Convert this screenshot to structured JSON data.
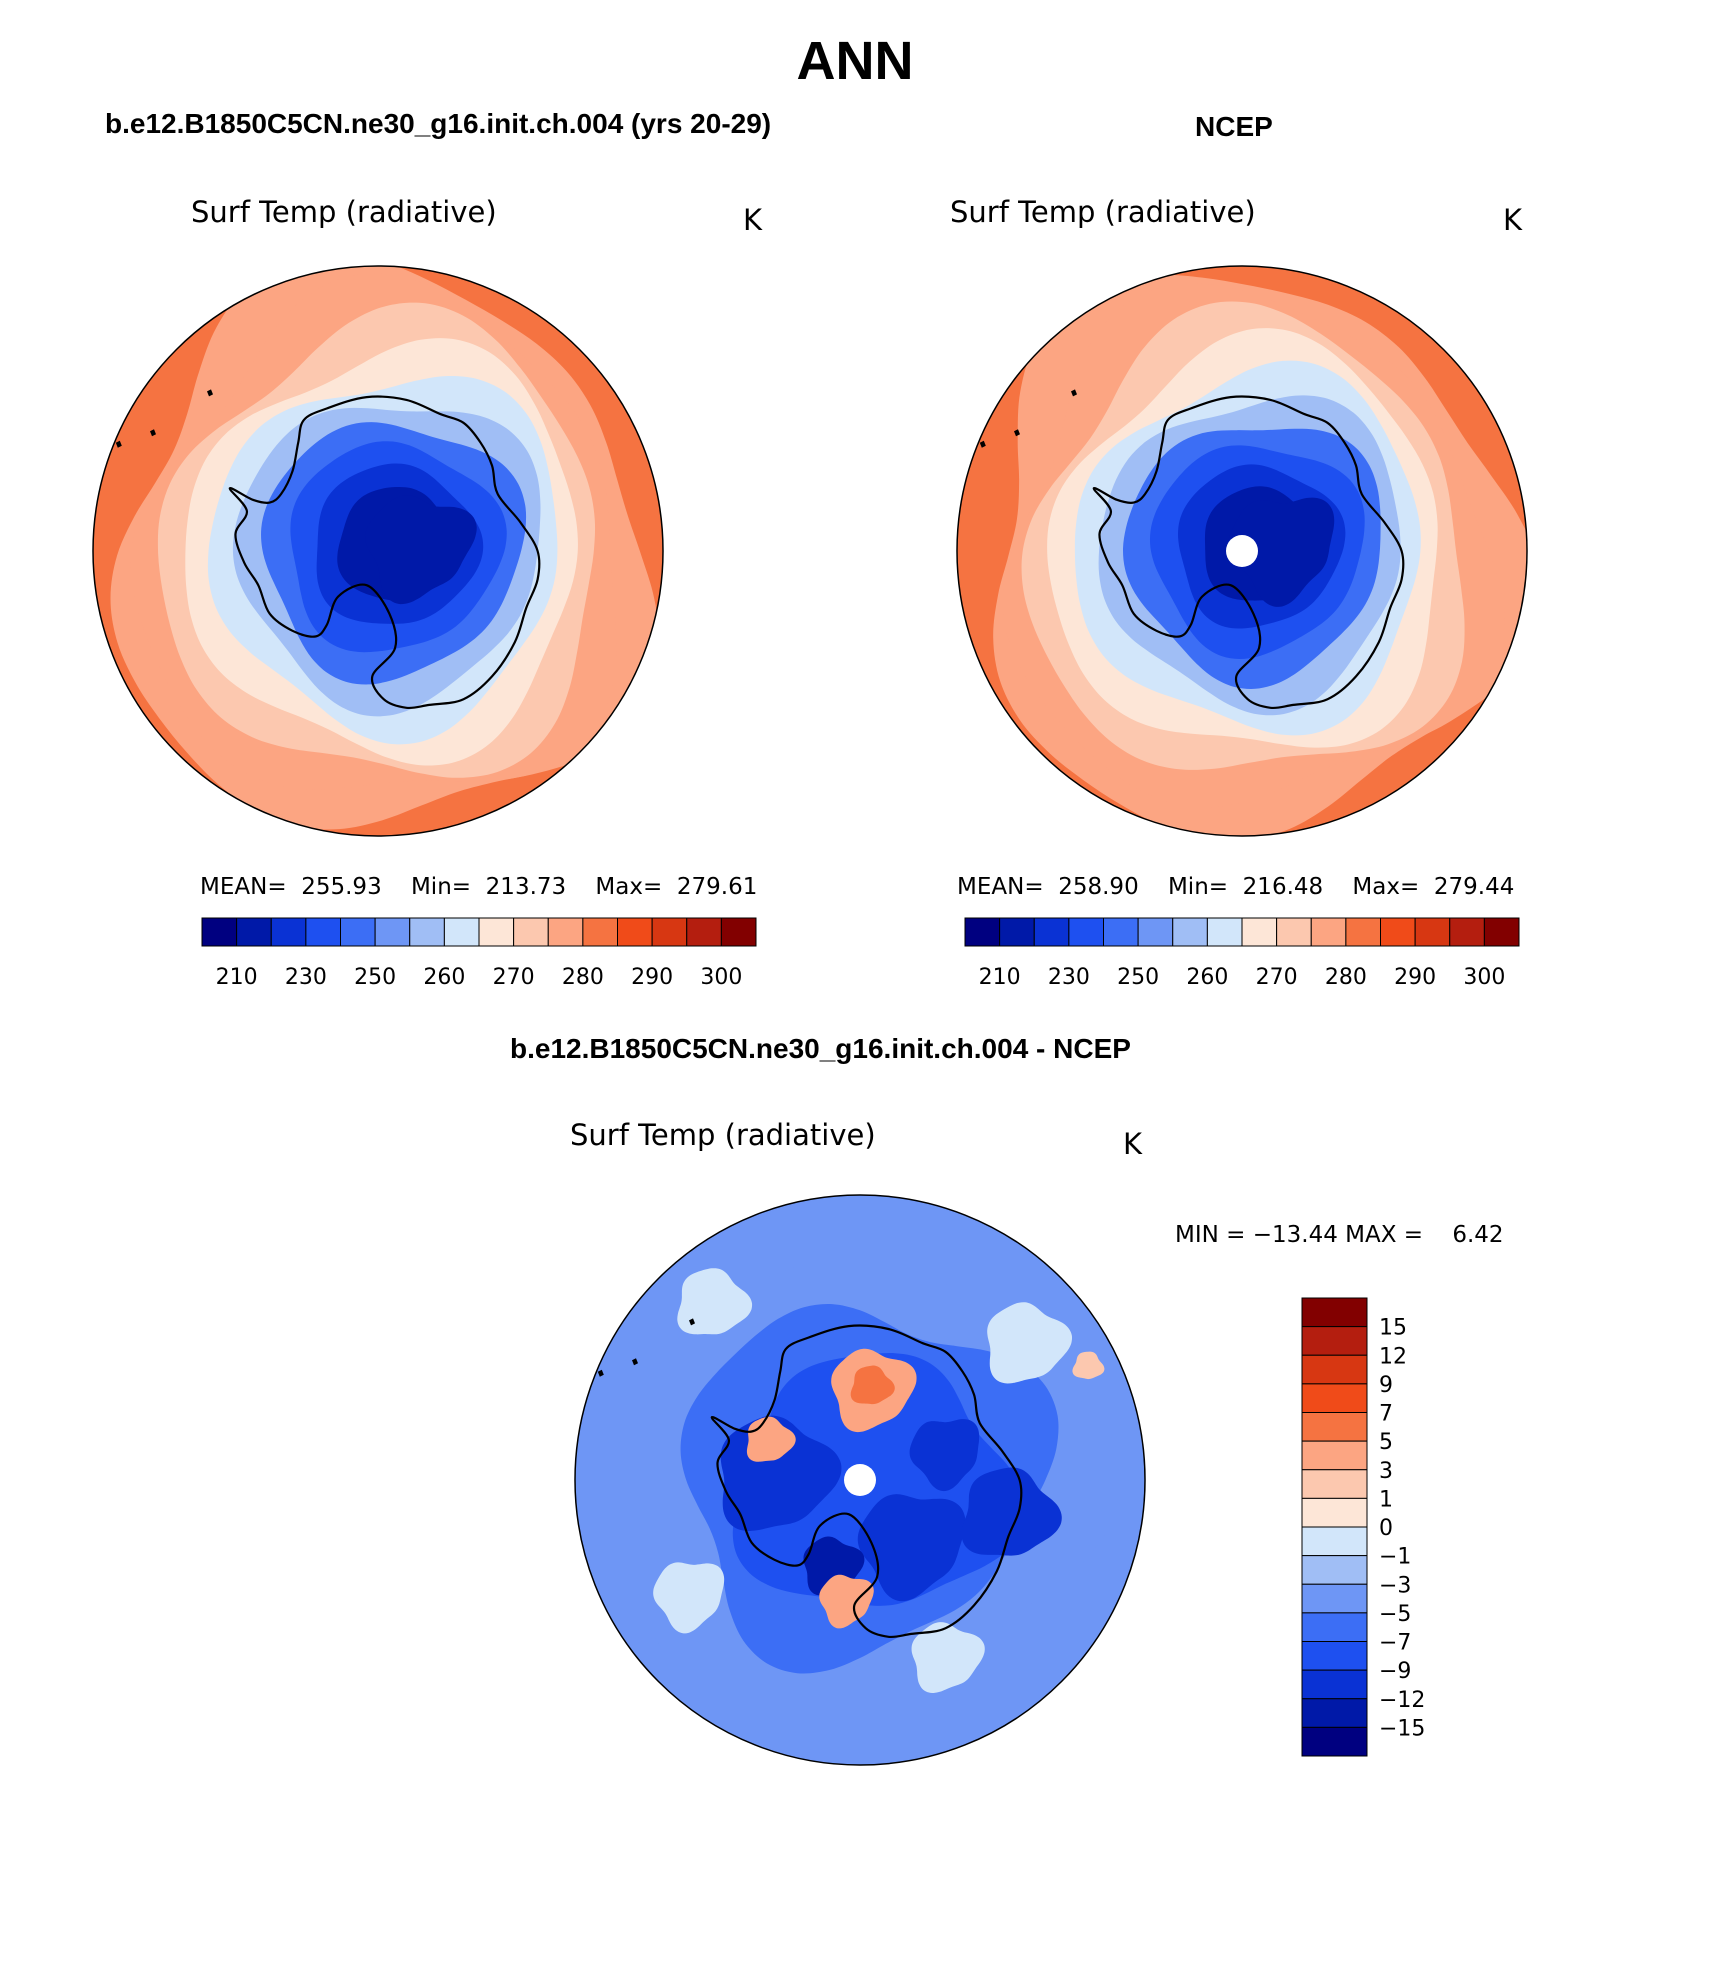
{
  "main_title": "ANN",
  "chart_data": [
    {
      "type": "heatmap",
      "projection": "south-polar-stereographic",
      "title": "b.e12.B1850C5CN.ne30_g16.init.ch.004 (yrs 20-29)",
      "variable": "Surf Temp (radiative)",
      "units": "K",
      "stats": {
        "mean_label": "MEAN=",
        "mean": "255.93",
        "min_label": "Min=",
        "min": "213.73",
        "max_label": "Max=",
        "max": "279.61"
      },
      "contour_levels": [
        210,
        220,
        230,
        240,
        250,
        255,
        260,
        265,
        270,
        275,
        280,
        285,
        290,
        295,
        300
      ],
      "tick_labels": [
        "210",
        "230",
        "250",
        "260",
        "270",
        "280",
        "290",
        "300"
      ],
      "colors": [
        "#000080",
        "#0019a8",
        "#0a32d4",
        "#1e50f0",
        "#3c6ef5",
        "#6e96f5",
        "#a0bef5",
        "#d2e6fa",
        "#fde6d7",
        "#fcc8af",
        "#fca582",
        "#f57341",
        "#f04b19",
        "#d73712",
        "#b41e0f",
        "#820000"
      ],
      "field": {
        "pole_value": 213.73,
        "ring_values": [
          215,
          224,
          238,
          248,
          255,
          262,
          267,
          272,
          276,
          279
        ]
      }
    },
    {
      "type": "heatmap",
      "projection": "south-polar-stereographic",
      "title": "NCEP",
      "variable": "Surf Temp (radiative)",
      "units": "K",
      "stats": {
        "mean_label": "MEAN=",
        "mean": "258.90",
        "min_label": "Min=",
        "min": "216.48",
        "max_label": "Max=",
        "max": "279.44"
      },
      "contour_levels": [
        210,
        220,
        230,
        240,
        250,
        255,
        260,
        265,
        270,
        275,
        280,
        285,
        290,
        295,
        300
      ],
      "tick_labels": [
        "210",
        "230",
        "250",
        "260",
        "270",
        "280",
        "290",
        "300"
      ],
      "colors": [
        "#000080",
        "#0019a8",
        "#0a32d4",
        "#1e50f0",
        "#3c6ef5",
        "#6e96f5",
        "#a0bef5",
        "#d2e6fa",
        "#fde6d7",
        "#fcc8af",
        "#fca582",
        "#f57341",
        "#f04b19",
        "#d73712",
        "#b41e0f",
        "#820000"
      ],
      "field": {
        "pole_value": 216.48,
        "ring_values": [
          218,
          226,
          238,
          247,
          255,
          261,
          267,
          272,
          276,
          279
        ]
      }
    },
    {
      "type": "heatmap",
      "projection": "south-polar-stereographic",
      "title": "b.e12.B1850C5CN.ne30_g16.init.ch.004 - NCEP",
      "variable": "Surf Temp (radiative)",
      "units": "K",
      "stats_text": "MIN = −13.44 MAX =    6.42",
      "contour_levels": [
        -15,
        -12,
        -9,
        -7,
        -5,
        -3,
        -1,
        0,
        1,
        3,
        5,
        7,
        9,
        12,
        15
      ],
      "tick_labels": [
        "15",
        "12",
        "9",
        "7",
        "5",
        "3",
        "1",
        "0",
        "−1",
        "−3",
        "−5",
        "−7",
        "−9",
        "−12",
        "−15"
      ],
      "colors": [
        "#000080",
        "#0019a8",
        "#0a32d4",
        "#1e50f0",
        "#3c6ef5",
        "#6e96f5",
        "#a0bef5",
        "#d2e6fa",
        "#fde6d7",
        "#fcc8af",
        "#fca582",
        "#f57341",
        "#f04b19",
        "#d73712",
        "#b41e0f",
        "#820000"
      ],
      "field": {
        "min": -13.44,
        "max": 6.42,
        "background_value": -3.2
      }
    }
  ]
}
